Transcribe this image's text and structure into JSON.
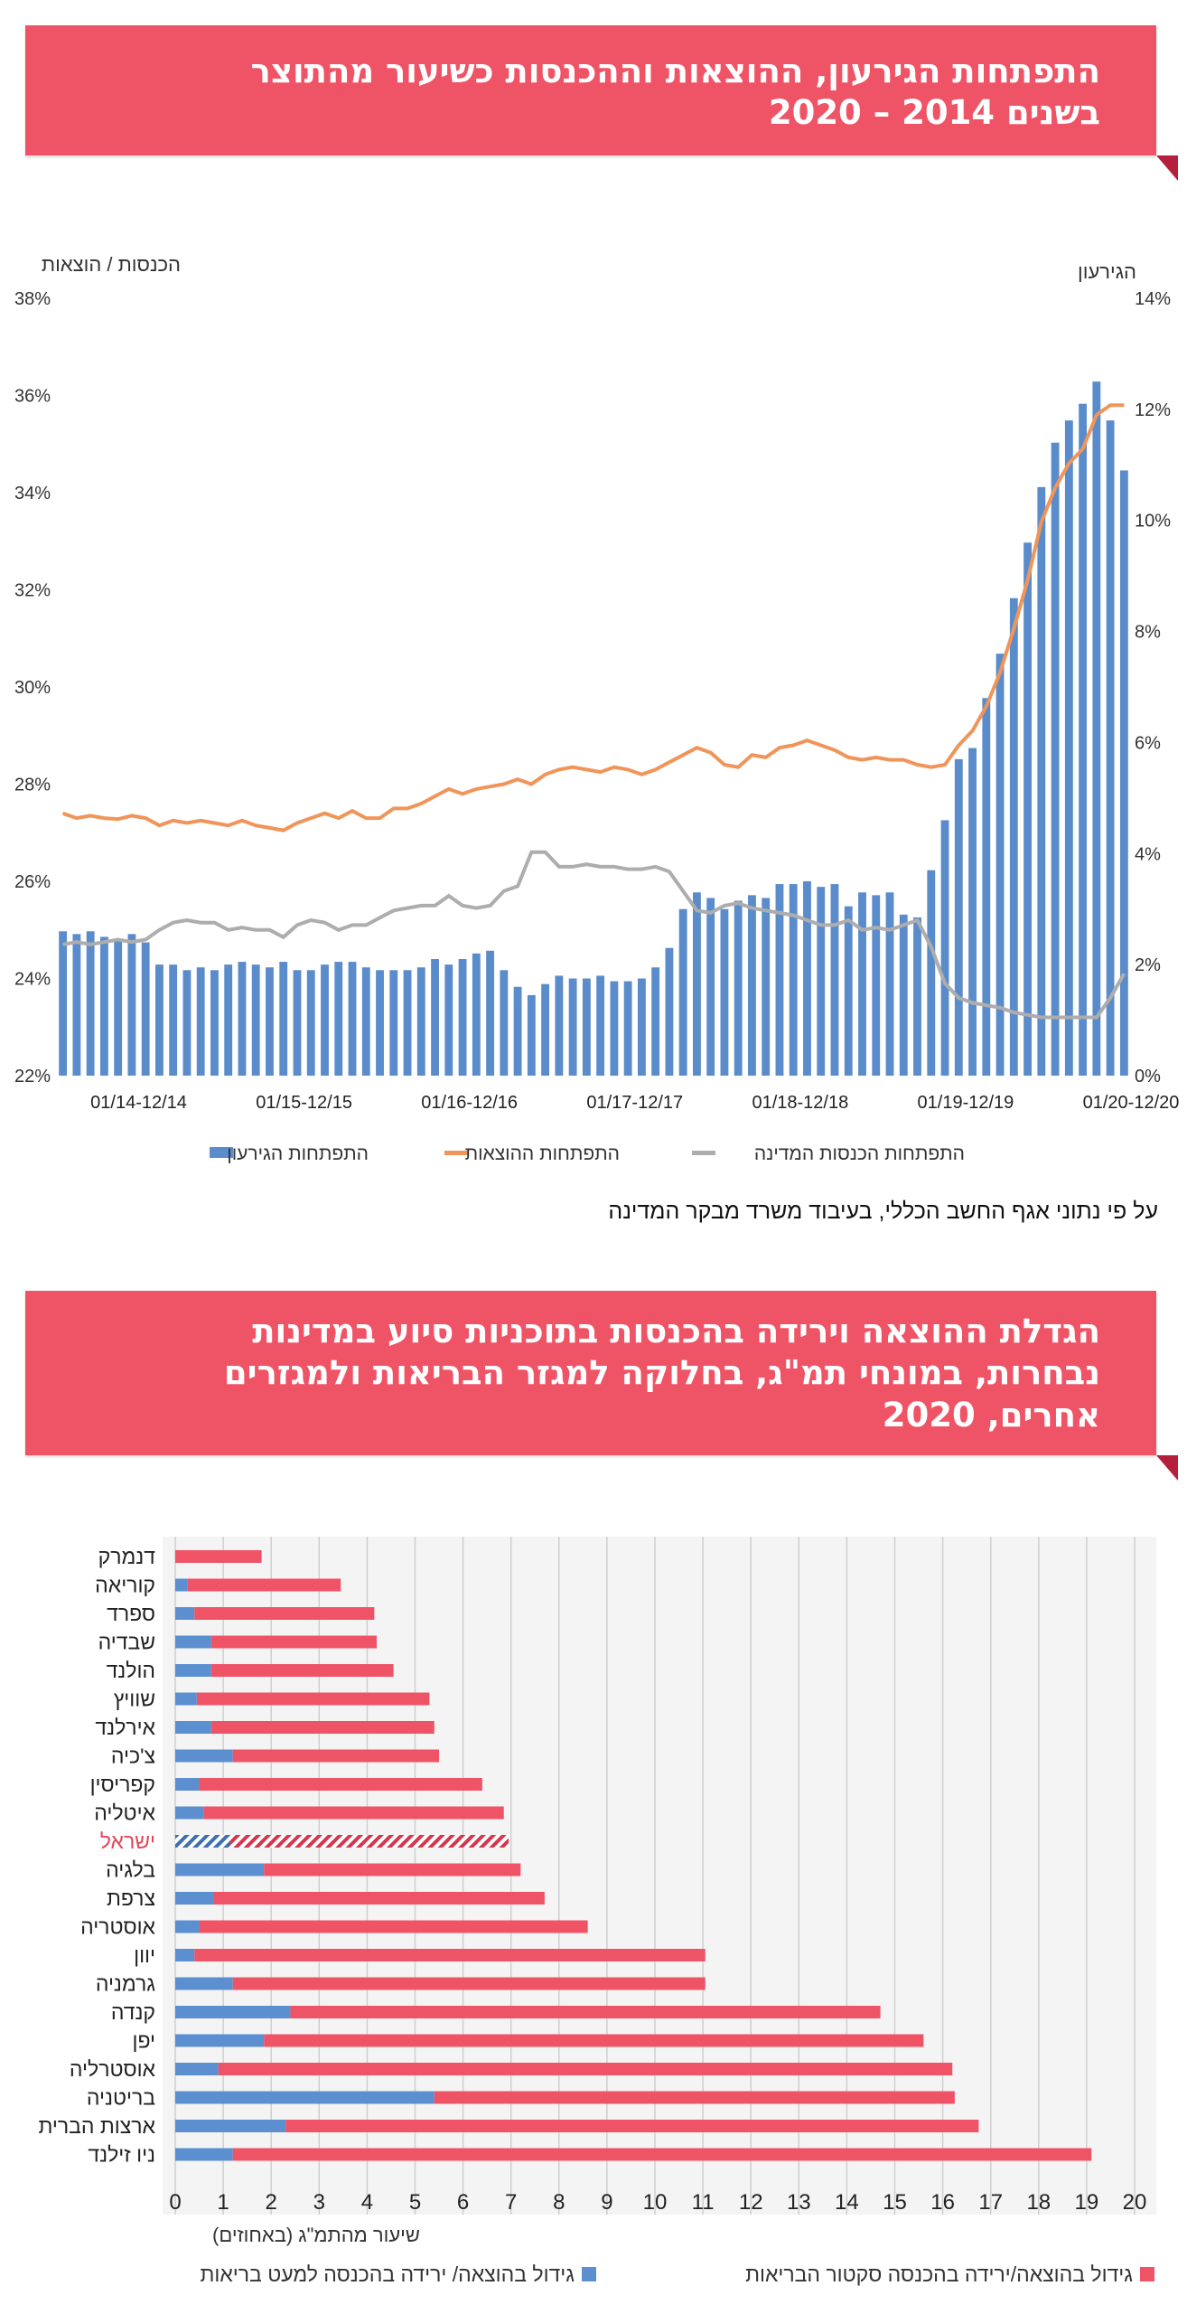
{
  "section1": {
    "title_line1": "התפתחות הגירעון, ההוצאות וההכנסות כשיעור מהתוצר",
    "title_line2": "בשנים 2014 – 2020"
  },
  "section2": {
    "title_line1": "הגדלת ההוצאה וירידה בהכנסות בתוכניות סיוע במדינות",
    "title_line2": "נבחרות, במונחי תמ\"ג, בחלוקה למגזר הבריאות ולמגזרים",
    "title_line3": "אחרים, 2020"
  },
  "source_note": "על פי נתוני אגף החשב הכללי, בעיבוד משרד מבקר המדינה",
  "colors": {
    "banner": "#ef5466",
    "deficit_bars": "#5a8ccb",
    "expenses_line": "#f0955a",
    "revenues_line": "#adadad",
    "health": "#5b8fd0",
    "other": "#ef5466"
  },
  "chart_data": [
    {
      "type": "bar+line",
      "left_axis_label": "הכנסות / הוצאות",
      "right_axis_label": "הגירעון",
      "left_ticks": [
        "22%",
        "24%",
        "26%",
        "28%",
        "30%",
        "32%",
        "34%",
        "36%",
        "38%"
      ],
      "right_ticks": [
        "0%",
        "2%",
        "4%",
        "6%",
        "8%",
        "10%",
        "12%",
        "14%"
      ],
      "left_ylim": [
        22,
        38
      ],
      "right_ylim": [
        0,
        14
      ],
      "x_labels": [
        "01/14-12/14",
        "01/15-12/15",
        "01/16-12/16",
        "01/17-12/17",
        "01/18-12/18",
        "01/19-12/19",
        "01/20-12/20"
      ],
      "legend": {
        "deficit": "התפתחות הגירעון",
        "expenses": "התפתחות ההוצאות",
        "revenues": "התפתחות הכנסות המדינה"
      },
      "legend_position": "bottom",
      "series": [
        {
          "name": "התפתחות הגירעון",
          "axis": "right",
          "kind": "bar",
          "values": [
            2.6,
            2.55,
            2.6,
            2.5,
            2.45,
            2.55,
            2.4,
            2.0,
            2.0,
            1.9,
            1.95,
            1.9,
            2.0,
            2.05,
            2.0,
            1.95,
            2.05,
            1.9,
            1.9,
            2.0,
            2.05,
            2.05,
            1.95,
            1.9,
            1.9,
            1.9,
            1.95,
            2.1,
            2.0,
            2.1,
            2.2,
            2.25,
            1.9,
            1.6,
            1.45,
            1.65,
            1.8,
            1.75,
            1.75,
            1.8,
            1.7,
            1.7,
            1.75,
            1.95,
            2.3,
            3.0,
            3.3,
            3.2,
            3.0,
            3.15,
            3.25,
            3.2,
            3.45,
            3.45,
            3.5,
            3.4,
            3.45,
            3.05,
            3.3,
            3.25,
            3.3,
            2.9,
            2.85,
            3.7,
            4.6,
            5.7,
            5.9,
            6.8,
            7.6,
            8.6,
            9.6,
            10.6,
            11.4,
            11.8,
            12.1,
            12.5,
            11.8,
            10.9
          ]
        },
        {
          "name": "התפתחות ההוצאות",
          "axis": "left",
          "kind": "line",
          "values": [
            27.4,
            27.3,
            27.35,
            27.3,
            27.28,
            27.35,
            27.3,
            27.15,
            27.25,
            27.2,
            27.25,
            27.2,
            27.15,
            27.25,
            27.15,
            27.1,
            27.05,
            27.2,
            27.3,
            27.4,
            27.3,
            27.45,
            27.3,
            27.3,
            27.5,
            27.5,
            27.6,
            27.75,
            27.9,
            27.8,
            27.9,
            27.95,
            28.0,
            28.1,
            28.0,
            28.2,
            28.3,
            28.35,
            28.3,
            28.25,
            28.35,
            28.3,
            28.2,
            28.3,
            28.45,
            28.6,
            28.75,
            28.65,
            28.4,
            28.35,
            28.6,
            28.55,
            28.75,
            28.8,
            28.9,
            28.8,
            28.7,
            28.55,
            28.5,
            28.55,
            28.5,
            28.5,
            28.4,
            28.35,
            28.4,
            28.8,
            29.1,
            29.6,
            30.3,
            31.2,
            32.2,
            33.4,
            34.1,
            34.6,
            34.9,
            35.6,
            35.8,
            35.8
          ]
        },
        {
          "name": "התפתחות הכנסות המדינה",
          "axis": "left",
          "kind": "line",
          "values": [
            24.7,
            24.75,
            24.7,
            24.75,
            24.8,
            24.75,
            24.8,
            25.0,
            25.15,
            25.2,
            25.15,
            25.15,
            25.0,
            25.05,
            25.0,
            25.0,
            24.85,
            25.1,
            25.2,
            25.15,
            25.0,
            25.1,
            25.1,
            25.25,
            25.4,
            25.45,
            25.5,
            25.5,
            25.7,
            25.5,
            25.45,
            25.5,
            25.8,
            25.9,
            26.6,
            26.6,
            26.3,
            26.3,
            26.35,
            26.3,
            26.3,
            26.25,
            26.25,
            26.3,
            26.2,
            25.8,
            25.4,
            25.35,
            25.5,
            25.55,
            25.45,
            25.4,
            25.35,
            25.3,
            25.2,
            25.1,
            25.1,
            25.2,
            25.0,
            25.05,
            25.0,
            25.1,
            25.2,
            24.65,
            23.9,
            23.6,
            23.5,
            23.45,
            23.4,
            23.3,
            23.25,
            23.2,
            23.2,
            23.2,
            23.2,
            23.2,
            23.6,
            24.1
          ]
        }
      ]
    },
    {
      "type": "bar",
      "orientation": "horizontal",
      "stacked": true,
      "xlabel": "שיעור מהתמ\"ג (באחוזים)",
      "xlim": [
        0,
        20
      ],
      "x_ticks": [
        "0",
        "1",
        "2",
        "3",
        "4",
        "5",
        "6",
        "7",
        "8",
        "9",
        "10",
        "11",
        "12",
        "13",
        "14",
        "15",
        "16",
        "17",
        "18",
        "19",
        "20"
      ],
      "categories": [
        "דנמרק",
        "קוריאה",
        "ספרד",
        "שבדיה",
        "הולנד",
        "שוויץ",
        "אירלנד",
        "צ'כיה",
        "קפריסין",
        "איטליה",
        "ישראל",
        "בלגיה",
        "צרפת",
        "אוסטריה",
        "יוון",
        "גרמניה",
        "קנדה",
        "יפן",
        "אוסטרליה",
        "בריטניה",
        "ארצות הברית",
        "ניו זילנד"
      ],
      "highlight_category": "ישראל",
      "legend": {
        "health": "גידול בהוצאה/ ירידה בהכנסה למעט בריאות",
        "other": "גידול בהוצאה/ירידה בהכנסה סקטור הבריאות"
      },
      "legend_position": "bottom",
      "series": [
        {
          "name": "גידול בהוצאה/ ירידה בהכנסה למעט בריאות",
          "values": [
            0.0,
            0.25,
            0.4,
            0.75,
            0.75,
            0.45,
            0.75,
            1.2,
            0.5,
            0.6,
            1.15,
            1.85,
            0.8,
            0.5,
            0.4,
            1.2,
            2.4,
            1.85,
            0.9,
            5.4,
            2.3,
            1.2
          ]
        },
        {
          "name": "גידול בהוצאה/ירידה בהכנסה סקטור הבריאות",
          "values": [
            1.8,
            3.2,
            3.75,
            3.45,
            3.8,
            4.85,
            4.65,
            4.3,
            5.9,
            6.25,
            5.8,
            5.35,
            6.9,
            8.1,
            10.65,
            9.85,
            12.3,
            13.75,
            15.3,
            10.85,
            14.45,
            17.9
          ]
        }
      ]
    }
  ]
}
